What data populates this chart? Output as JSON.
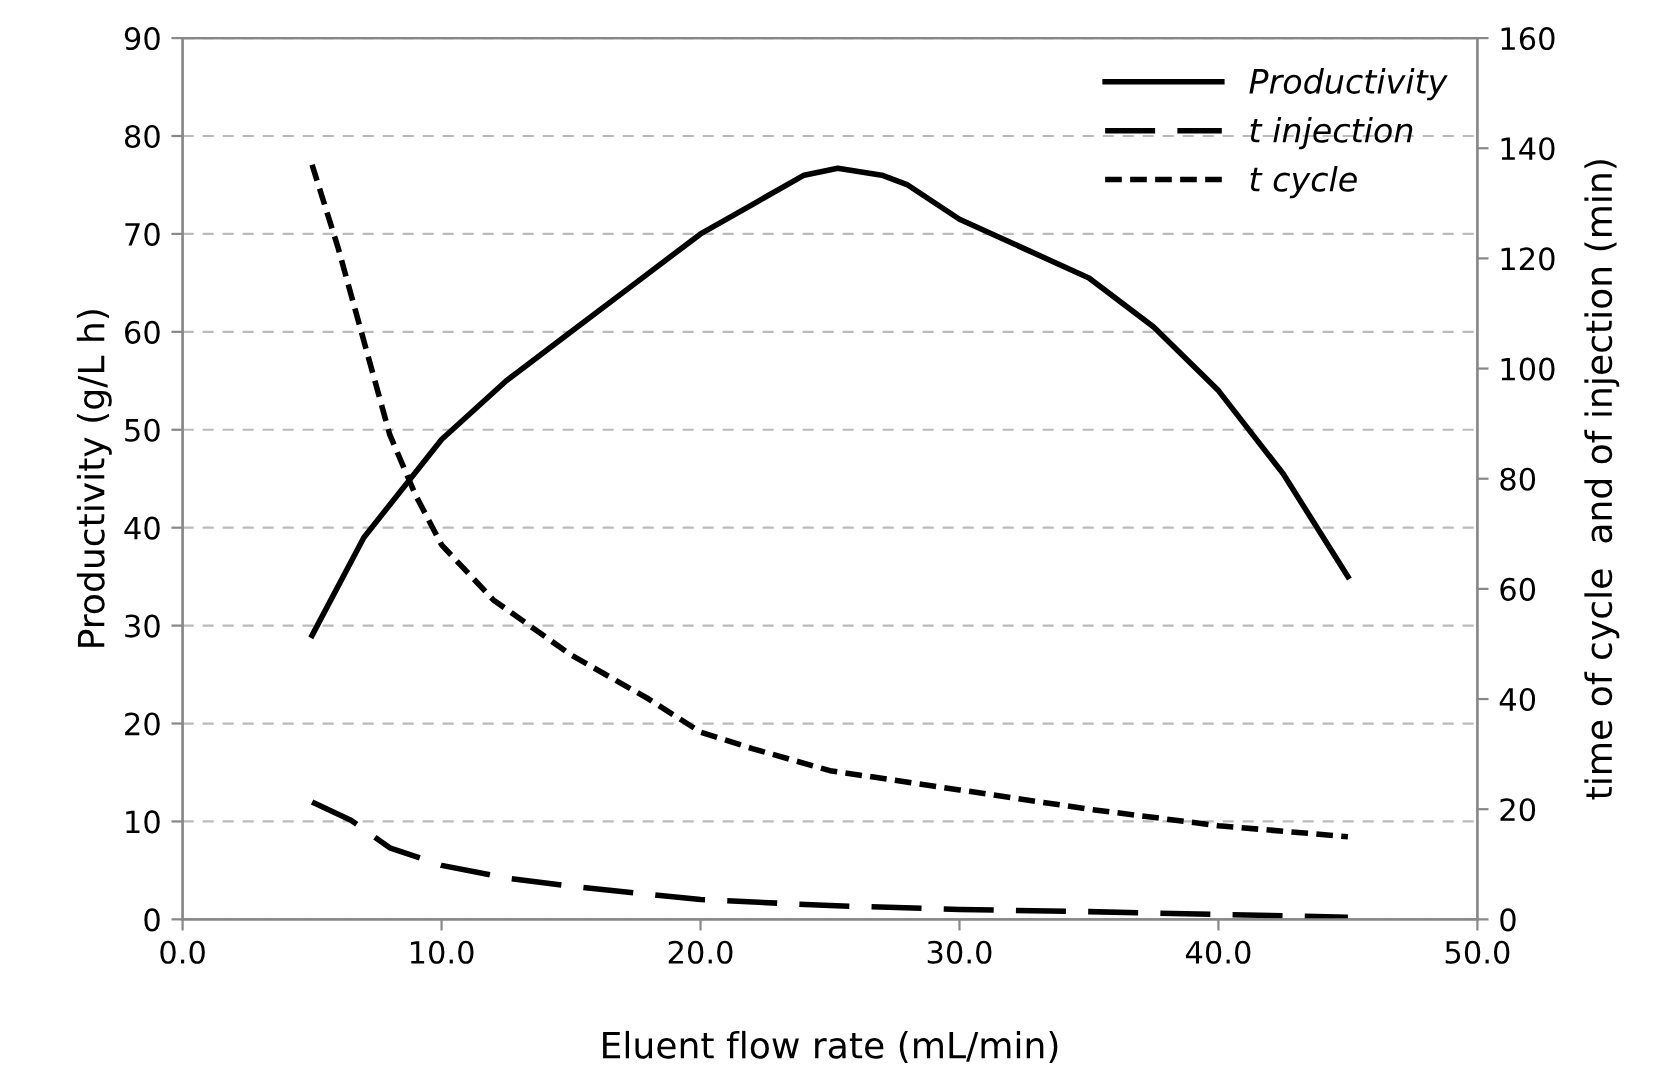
{
  "chart_data": {
    "type": "line",
    "xlabel": "Eluent flow rate (mL/min)",
    "ylabel": "Productivity (g/L h)",
    "y2label": "time of cycle  and of injection (min)",
    "xlim": [
      0,
      50
    ],
    "xticks": [
      {
        "value": 0,
        "label": "0.0"
      },
      {
        "value": 10,
        "label": "10.0"
      },
      {
        "value": 20,
        "label": "20.0"
      },
      {
        "value": 30,
        "label": "30.0"
      },
      {
        "value": 40,
        "label": "40.0"
      },
      {
        "value": 50,
        "label": "50.0"
      }
    ],
    "ylim": [
      0,
      90
    ],
    "yticks": [
      0,
      10,
      20,
      30,
      40,
      50,
      60,
      70,
      80,
      90
    ],
    "y2lim": [
      0,
      160
    ],
    "y2ticks": [
      0,
      20,
      40,
      60,
      80,
      100,
      120,
      140,
      160
    ],
    "grid": "y",
    "legend": "top right",
    "marker": "none",
    "series": [
      {
        "name": "Productivity",
        "color": "#000000",
        "line_style": "solid",
        "x": [
          5,
          7,
          10,
          12.5,
          15,
          17.5,
          20,
          22,
          24,
          25.3,
          27,
          28,
          30,
          32.5,
          35,
          37.5,
          40,
          42.5,
          45
        ],
        "values": [
          29,
          39,
          49,
          55,
          60,
          65,
          70,
          73,
          76,
          76.7,
          76,
          75,
          71.5,
          68.5,
          65.5,
          60.5,
          54,
          45.5,
          35
        ]
      },
      {
        "name": "t injection",
        "color": "#000000",
        "line_style": "dashed",
        "axis": "y2",
        "x": [
          5,
          6.5,
          8,
          10,
          12.5,
          15,
          20,
          25,
          30,
          35,
          40,
          45
        ],
        "values": [
          21.3,
          18,
          13,
          9.8,
          7.5,
          6,
          3.6,
          2.5,
          1.8,
          1.4,
          0.9,
          0.4
        ]
      },
      {
        "name": "t cycle",
        "color": "#000000",
        "line_style": "dotted",
        "axis": "y2",
        "x": [
          5,
          6,
          7,
          8,
          9,
          10,
          12,
          15,
          18,
          20,
          22,
          25,
          30,
          35,
          40,
          45
        ],
        "values": [
          137,
          122,
          105,
          88,
          77,
          68,
          58,
          48,
          40,
          34,
          31,
          27,
          23.5,
          20,
          17,
          15
        ]
      }
    ]
  }
}
